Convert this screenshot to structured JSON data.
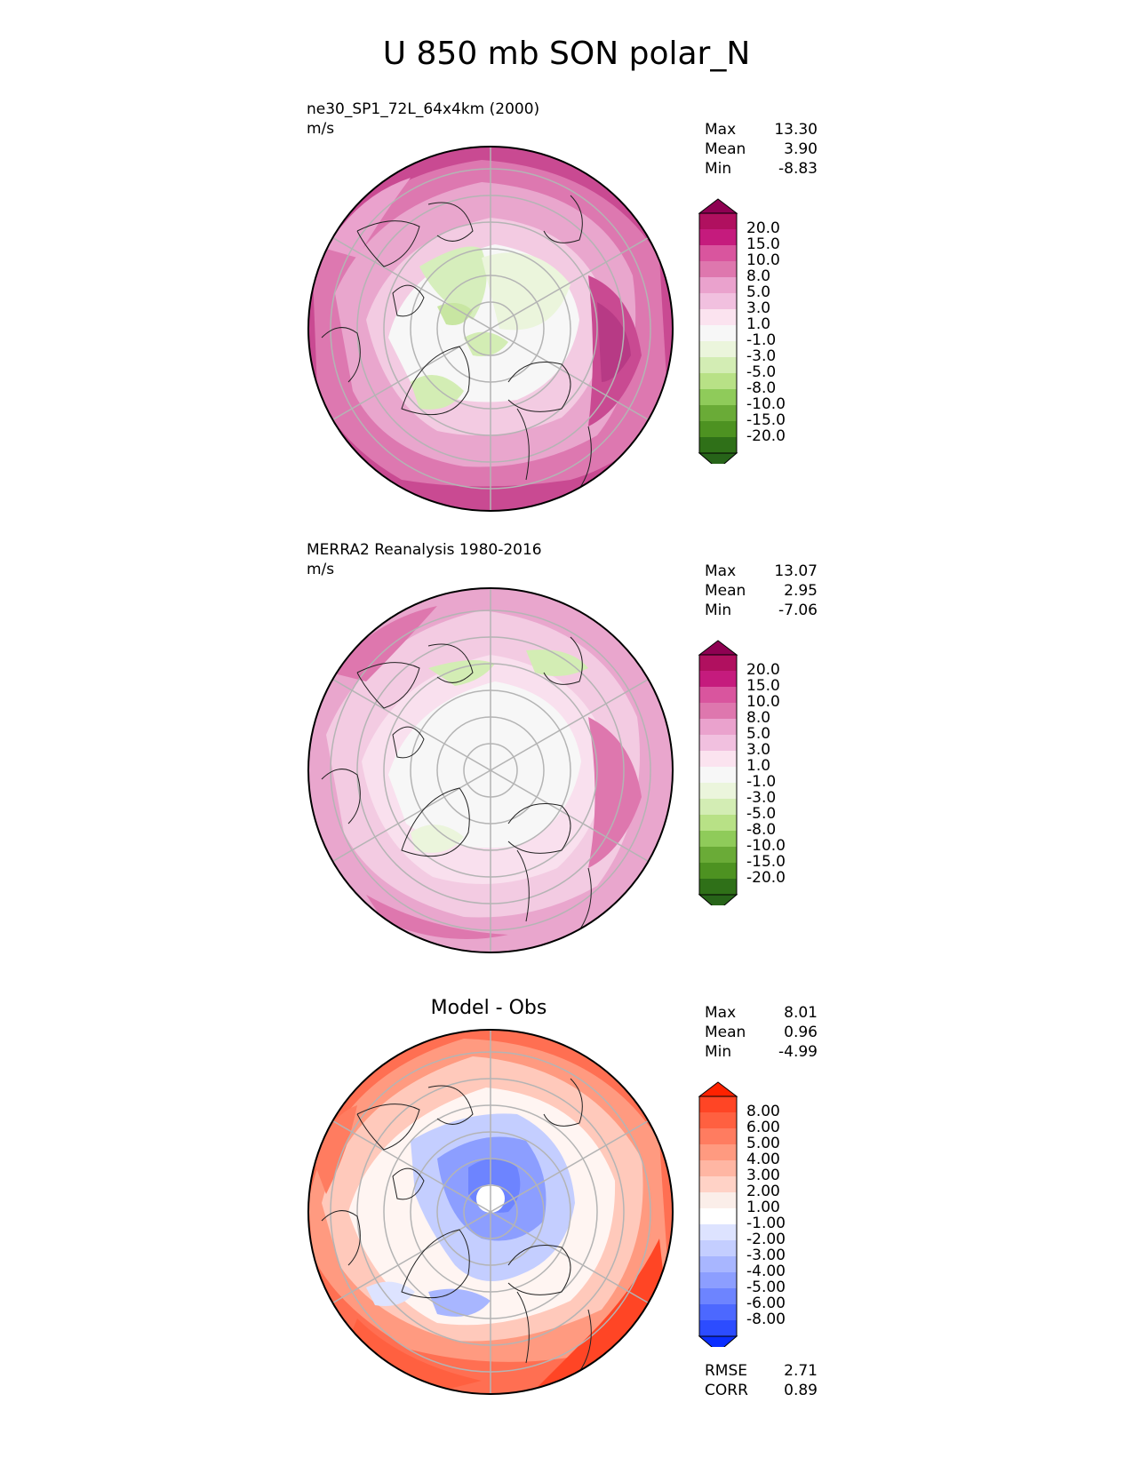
{
  "title": "U 850 mb SON polar_N",
  "panels": [
    {
      "title": "ne30_SP1_72L_64x4km (2000)",
      "units": "m/s",
      "stats": [
        {
          "label": "Max",
          "value": "13.30"
        },
        {
          "label": "Mean",
          "value": "3.90"
        },
        {
          "label": "Min",
          "value": "-8.83"
        }
      ],
      "colorbar": {
        "ticks": [
          "20.0",
          "15.0",
          "10.0",
          "8.0",
          "5.0",
          "3.0",
          "1.0",
          "-1.0",
          "-3.0",
          "-5.0",
          "-8.0",
          "-10.0",
          "-15.0",
          "-20.0"
        ],
        "colors": [
          "#8e0152",
          "#b0105f",
          "#c51b7d",
          "#d9559e",
          "#de77ae",
          "#eaa2cd",
          "#f1c0df",
          "#fbe3ef",
          "#f7f7f7",
          "#ebf5dc",
          "#d3edb4",
          "#b8e186",
          "#8fcb5a",
          "#6aab37",
          "#4d9221",
          "#2f7018",
          "#276419"
        ]
      }
    },
    {
      "title": "MERRA2 Reanalysis 1980-2016",
      "units": "m/s",
      "stats": [
        {
          "label": "Max",
          "value": "13.07"
        },
        {
          "label": "Mean",
          "value": "2.95"
        },
        {
          "label": "Min",
          "value": "-7.06"
        }
      ],
      "colorbar": {
        "ticks": [
          "20.0",
          "15.0",
          "10.0",
          "8.0",
          "5.0",
          "3.0",
          "1.0",
          "-1.0",
          "-3.0",
          "-5.0",
          "-8.0",
          "-10.0",
          "-15.0",
          "-20.0"
        ],
        "colors": [
          "#8e0152",
          "#b0105f",
          "#c51b7d",
          "#d9559e",
          "#de77ae",
          "#eaa2cd",
          "#f1c0df",
          "#fbe3ef",
          "#f7f7f7",
          "#ebf5dc",
          "#d3edb4",
          "#b8e186",
          "#8fcb5a",
          "#6aab37",
          "#4d9221",
          "#2f7018",
          "#276419"
        ]
      }
    },
    {
      "title": "Model - Obs",
      "stats": [
        {
          "label": "Max",
          "value": "8.01"
        },
        {
          "label": "Mean",
          "value": "0.96"
        },
        {
          "label": "Min",
          "value": "-4.99"
        }
      ],
      "colorbar": {
        "ticks": [
          "8.00",
          "6.00",
          "5.00",
          "4.00",
          "3.00",
          "2.00",
          "1.00",
          "-1.00",
          "-2.00",
          "-3.00",
          "-4.00",
          "-5.00",
          "-6.00",
          "-8.00"
        ],
        "colors": [
          "#ff2200",
          "#ff4525",
          "#ff6040",
          "#ff7c60",
          "#ff9a80",
          "#ffb6a3",
          "#ffd2c6",
          "#fbeee9",
          "#ffffff",
          "#dde3ff",
          "#c4ceff",
          "#a8b6ff",
          "#8c9eff",
          "#6d84ff",
          "#4c68ff",
          "#2c4cff",
          "#0a2eff"
        ]
      },
      "metrics": [
        {
          "label": "RMSE",
          "value": "2.71"
        },
        {
          "label": "CORR",
          "value": "0.89"
        }
      ]
    }
  ],
  "chart_data": [
    {
      "type": "heatmap",
      "projection": "polar stereographic (north)",
      "title": "ne30_SP1_72L_64x4km (2000)",
      "units": "m/s",
      "max": 13.3,
      "mean": 3.9,
      "min": -8.83,
      "levels": [
        -20,
        -15,
        -10,
        -8,
        -5,
        -3,
        -1,
        1,
        3,
        5,
        8,
        10,
        15,
        20
      ]
    },
    {
      "type": "heatmap",
      "projection": "polar stereographic (north)",
      "title": "MERRA2 Reanalysis 1980-2016",
      "units": "m/s",
      "max": 13.07,
      "mean": 2.95,
      "min": -7.06,
      "levels": [
        -20,
        -15,
        -10,
        -8,
        -5,
        -3,
        -1,
        1,
        3,
        5,
        8,
        10,
        15,
        20
      ]
    },
    {
      "type": "heatmap",
      "projection": "polar stereographic (north)",
      "title": "Model - Obs",
      "max": 8.01,
      "mean": 0.96,
      "min": -4.99,
      "rmse": 2.71,
      "corr": 0.89,
      "levels": [
        -8,
        -6,
        -5,
        -4,
        -3,
        -2,
        -1,
        1,
        2,
        3,
        4,
        5,
        6,
        8
      ]
    }
  ]
}
